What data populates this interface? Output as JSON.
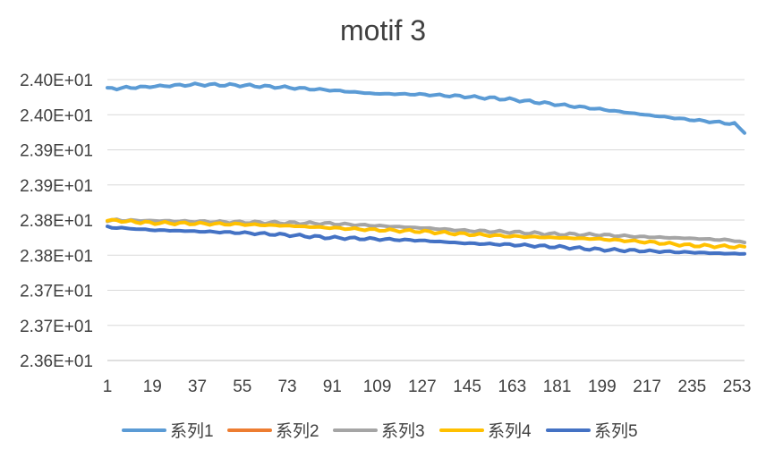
{
  "chart_data": {
    "type": "line",
    "title": "motif 3",
    "xlabel": "",
    "ylabel": "",
    "x_ticks": [
      "1",
      "19",
      "37",
      "55",
      "73",
      "91",
      "109",
      "127",
      "145",
      "163",
      "181",
      "199",
      "217",
      "235",
      "253"
    ],
    "x_range": [
      1,
      256
    ],
    "y_ticks": [
      "2.36E+01",
      "2.37E+01",
      "2.37E+01",
      "2.38E+01",
      "2.38E+01",
      "2.39E+01",
      "2.39E+01",
      "2.40E+01",
      "2.40E+01"
    ],
    "ylim": [
      23.6,
      24.0
    ],
    "grid": "horizontal",
    "legend_position": "bottom",
    "series": [
      {
        "name": "系列1",
        "color": "#5B9BD5",
        "x": [
          1,
          18,
          36,
          54,
          72,
          90,
          108,
          126,
          144,
          162,
          180,
          198,
          216,
          234,
          252,
          256
        ],
        "values": [
          23.987,
          23.99,
          23.993,
          23.992,
          23.989,
          23.985,
          23.98,
          23.979,
          23.976,
          23.972,
          23.965,
          23.958,
          23.95,
          23.943,
          23.937,
          23.924
        ]
      },
      {
        "name": "系列2",
        "color": "#ED7D31",
        "x": [],
        "values": []
      },
      {
        "name": "系列3",
        "color": "#A5A5A5",
        "x": [
          1,
          18,
          36,
          54,
          72,
          90,
          108,
          126,
          144,
          162,
          180,
          198,
          216,
          234,
          252,
          256
        ],
        "values": [
          23.8,
          23.799,
          23.798,
          23.797,
          23.796,
          23.795,
          23.792,
          23.789,
          23.785,
          23.783,
          23.78,
          23.779,
          23.776,
          23.774,
          23.771,
          23.768
        ]
      },
      {
        "name": "系列4",
        "color": "#FFC000",
        "x": [
          1,
          18,
          36,
          54,
          72,
          90,
          108,
          126,
          144,
          162,
          180,
          198,
          216,
          234,
          252,
          256
        ],
        "values": [
          23.8,
          23.796,
          23.795,
          23.794,
          23.792,
          23.789,
          23.786,
          23.784,
          23.78,
          23.777,
          23.775,
          23.773,
          23.769,
          23.764,
          23.762,
          23.762
        ]
      },
      {
        "name": "系列5",
        "color": "#4472C4",
        "x": [
          1,
          18,
          36,
          54,
          72,
          90,
          108,
          126,
          144,
          162,
          180,
          198,
          216,
          234,
          252,
          256
        ],
        "values": [
          23.79,
          23.786,
          23.784,
          23.782,
          23.779,
          23.775,
          23.773,
          23.771,
          23.767,
          23.765,
          23.762,
          23.758,
          23.756,
          23.754,
          23.752,
          23.752
        ]
      }
    ]
  }
}
